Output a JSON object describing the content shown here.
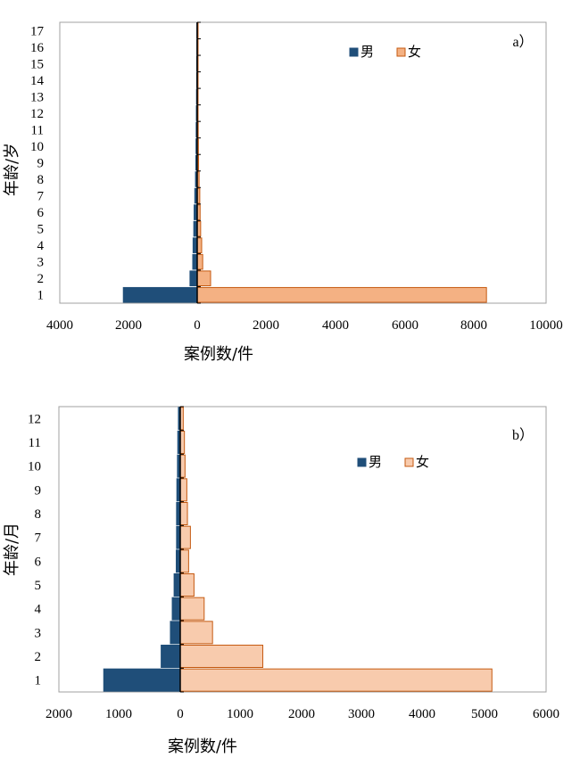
{
  "colors": {
    "male_fill": "#1f4e79",
    "female_fill": "#f4b183",
    "female_fill_light": "#f8cbad",
    "female_stroke": "#c55a11",
    "axis": "#000000"
  },
  "chart_data": [
    {
      "type": "bar",
      "orientation": "horizontal",
      "panel_label": "a）",
      "ylabel": "年龄/岁",
      "xlabel": "案例数/件",
      "categories": [
        "1",
        "2",
        "3",
        "4",
        "5",
        "6",
        "7",
        "8",
        "9",
        "10",
        "11",
        "12",
        "13",
        "14",
        "15",
        "16",
        "17"
      ],
      "xlim": [
        -4000,
        10000
      ],
      "xticks": [
        -4000,
        -2000,
        0,
        2000,
        4000,
        6000,
        8000,
        10000
      ],
      "xtick_labels": [
        "4000",
        "2000",
        "0",
        "2000",
        "4000",
        "6000",
        "8000",
        "10000"
      ],
      "legend_position": "top-right",
      "series": [
        {
          "name": "男",
          "values": [
            -2150,
            -210,
            -130,
            -120,
            -100,
            -90,
            -70,
            -50,
            -40,
            -35,
            -30,
            -25,
            -20,
            -15,
            -15,
            -10,
            -10
          ]
        },
        {
          "name": "女",
          "values": [
            8350,
            390,
            160,
            130,
            100,
            85,
            75,
            55,
            40,
            35,
            30,
            25,
            20,
            20,
            15,
            15,
            10
          ]
        }
      ]
    },
    {
      "type": "bar",
      "orientation": "horizontal",
      "panel_label": "b）",
      "ylabel": "年龄/月",
      "xlabel": "案例数/件",
      "categories": [
        "1",
        "2",
        "3",
        "4",
        "5",
        "6",
        "7",
        "8",
        "9",
        "10",
        "11",
        "12"
      ],
      "xlim": [
        -2000,
        6000
      ],
      "xtick_labels": [
        "2000",
        "1000",
        "0",
        "1000",
        "2000",
        "3000",
        "4000",
        "5000",
        "6000"
      ],
      "legend_position": "top-right",
      "series": [
        {
          "name": "男",
          "values": [
            -1250,
            -310,
            -160,
            -130,
            -100,
            -65,
            -60,
            -60,
            -55,
            -45,
            -40,
            -30
          ]
        },
        {
          "name": "女",
          "values": [
            5120,
            1370,
            540,
            400,
            230,
            140,
            170,
            120,
            110,
            80,
            70,
            50
          ]
        }
      ]
    }
  ]
}
